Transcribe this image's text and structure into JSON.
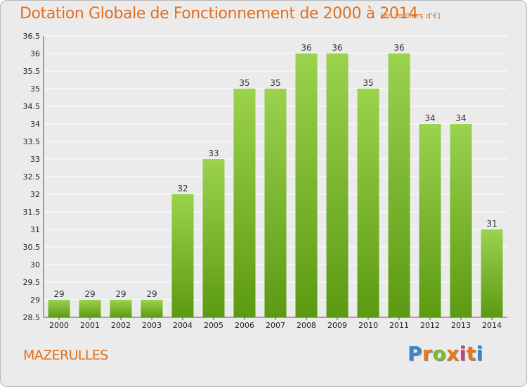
{
  "header": {
    "title": "Dotation Globale de Fonctionnement de 2000 à 2014",
    "subtitle": "(en milliers d'€)"
  },
  "footer": {
    "commune": "MAZERULLES",
    "logo_letters": [
      "P",
      "r",
      "o",
      "x",
      "i",
      "t",
      "i"
    ],
    "logo_colors": [
      "#3d86c6",
      "#e8741e",
      "#7cb82f",
      "#e8741e",
      "#d23c8c",
      "#e8741e",
      "#3d86c6"
    ]
  },
  "colors": {
    "accent": "#e0701e",
    "bar_top": "#9bd24e",
    "bar_bottom": "#5c9a12",
    "grid": "#ffffff",
    "background": "#ebebeb"
  },
  "chart_data": {
    "type": "bar",
    "title": "Dotation Globale de Fonctionnement de 2000 à 2014",
    "subtitle": "(en milliers d'€)",
    "categories": [
      "2000",
      "2001",
      "2002",
      "2003",
      "2004",
      "2005",
      "2006",
      "2007",
      "2008",
      "2009",
      "2010",
      "2011",
      "2012",
      "2013",
      "2014"
    ],
    "values": [
      29,
      29,
      29,
      29,
      32,
      33,
      35,
      35,
      36,
      36,
      35,
      36,
      34,
      34,
      31
    ],
    "ylim": [
      28.5,
      36.5
    ],
    "yticks": [
      "28.5",
      "29",
      "29.5",
      "30",
      "30.5",
      "31",
      "31.5",
      "32",
      "32.5",
      "33",
      "33.5",
      "34",
      "34.5",
      "35",
      "35.5",
      "36",
      "36.5"
    ],
    "grid": true,
    "xlabel": "",
    "ylabel": ""
  }
}
